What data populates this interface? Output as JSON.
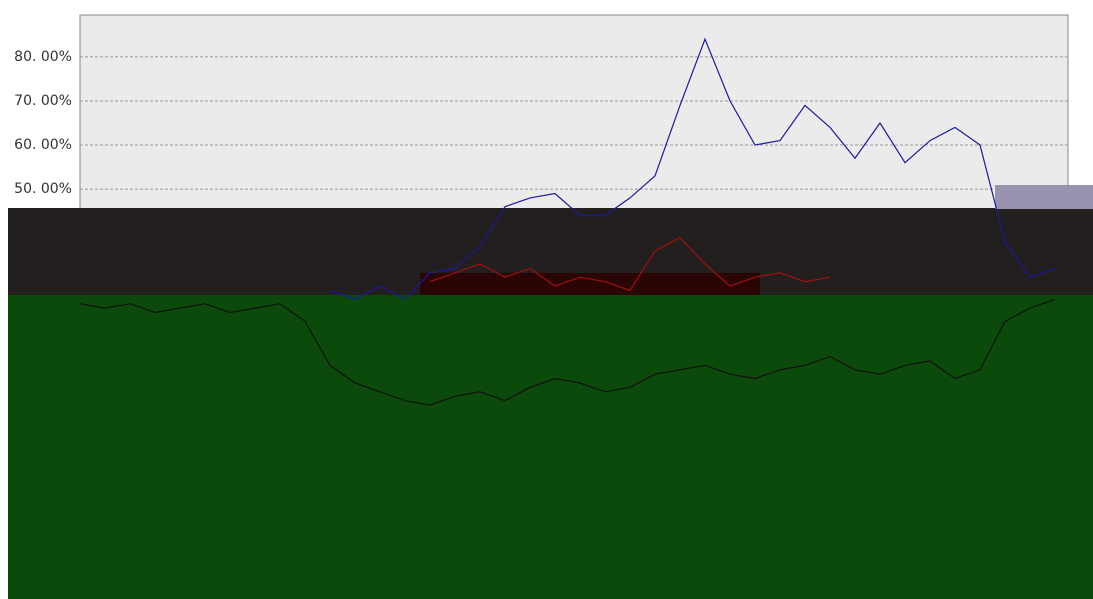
{
  "chart_data": {
    "type": "line",
    "categories": [
      null,
      null,
      null,
      null,
      null,
      null,
      null,
      null,
      null,
      null,
      null,
      null,
      null,
      null,
      null,
      null,
      null,
      null,
      null,
      null,
      null,
      null,
      null,
      null,
      null,
      null,
      null,
      null,
      null,
      null,
      null,
      null,
      null,
      null,
      null,
      null,
      null,
      null,
      null,
      null
    ],
    "series": [
      {
        "color": "#1a1aa0",
        "values": [
          null,
          null,
          null,
          null,
          null,
          null,
          null,
          null,
          null,
          null,
          27,
          25,
          28,
          25,
          31,
          32,
          37,
          46,
          48,
          49,
          44,
          44,
          48,
          53,
          69,
          84,
          70,
          60,
          61,
          69,
          64,
          57,
          65,
          56,
          61,
          64,
          60,
          38,
          30,
          32
        ]
      },
      {
        "color": "#a01010",
        "values": [
          null,
          null,
          null,
          null,
          null,
          null,
          null,
          null,
          null,
          null,
          null,
          null,
          null,
          null,
          29,
          31,
          33,
          30,
          32,
          28,
          30,
          29,
          27,
          36,
          39,
          33,
          28,
          30,
          31,
          29,
          30,
          null,
          null,
          null,
          null,
          null,
          null,
          null,
          null,
          null
        ]
      },
      {
        "color": "#111111",
        "values": [
          24,
          23,
          24,
          22,
          23,
          24,
          22,
          23,
          24,
          20,
          10,
          6,
          4,
          2,
          1,
          3,
          4,
          2,
          5,
          7,
          6,
          4,
          5,
          8,
          9,
          10,
          8,
          7,
          9,
          10,
          12,
          9,
          8,
          10,
          11,
          7,
          9,
          20,
          23,
          25
        ]
      }
    ],
    "ylim": [
      -43,
      89.5
    ],
    "yticks": [
      {
        "value": 80,
        "label": "80. 00%"
      },
      {
        "value": 70,
        "label": "70. 00%"
      },
      {
        "value": 60,
        "label": "60. 00%"
      },
      {
        "value": 50,
        "label": "50. 00%"
      }
    ],
    "grid": true
  }
}
